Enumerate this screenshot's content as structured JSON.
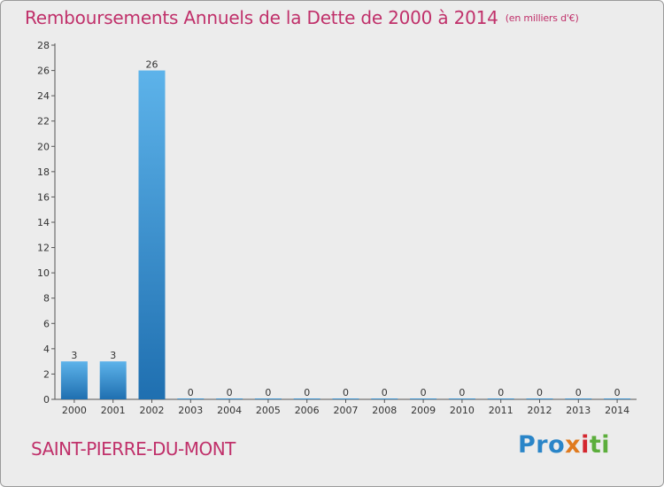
{
  "header": {
    "title": "Remboursements Annuels de la Dette de 2000 à 2014",
    "unit": "(en milliers d'€)"
  },
  "footer": {
    "commune": "SAINT-PIERRE-DU-MONT",
    "logo": [
      "Pro",
      "x",
      "i",
      "ti"
    ]
  },
  "colors": {
    "title": "#c0306a",
    "bar_light": "#5db3ea",
    "bar_dark": "#1f6fb0",
    "background": "#ececec"
  },
  "chart_data": {
    "type": "bar",
    "title": "Remboursements Annuels de la Dette de 2000 à 2014",
    "ylabel": "en milliers d'€",
    "xlabel": "",
    "categories": [
      "2000",
      "2001",
      "2002",
      "2003",
      "2004",
      "2005",
      "2006",
      "2007",
      "2008",
      "2009",
      "2010",
      "2011",
      "2012",
      "2013",
      "2014"
    ],
    "values": [
      3,
      3,
      26,
      0,
      0,
      0,
      0,
      0,
      0,
      0,
      0,
      0,
      0,
      0,
      0
    ],
    "ylim": [
      0,
      28
    ],
    "yticks": [
      0,
      2,
      4,
      6,
      8,
      10,
      12,
      14,
      16,
      18,
      20,
      22,
      24,
      26,
      28
    ],
    "grid": false,
    "legend": "none"
  }
}
